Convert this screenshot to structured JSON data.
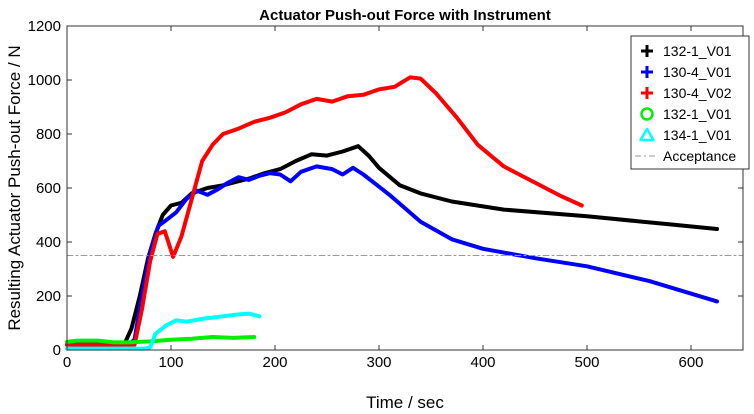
{
  "chart_data": {
    "type": "line",
    "title": "Actuator Push-out Force with Instrument",
    "xlabel": "Time / sec",
    "ylabel": "Resulting Actuator Push-out Force / N",
    "xlim": [
      0,
      650
    ],
    "ylim": [
      0,
      1200
    ],
    "xticks": [
      0,
      100,
      200,
      300,
      400,
      500,
      600
    ],
    "yticks": [
      0,
      200,
      400,
      600,
      800,
      1000,
      1200
    ],
    "grid": false,
    "legend_position": "top-right",
    "series": [
      {
        "name": "132-1_V01",
        "color": "#000000",
        "marker": "plus",
        "points": [
          [
            0,
            20
          ],
          [
            55,
            20
          ],
          [
            62,
            80
          ],
          [
            70,
            200
          ],
          [
            78,
            340
          ],
          [
            85,
            430
          ],
          [
            92,
            500
          ],
          [
            100,
            535
          ],
          [
            110,
            545
          ],
          [
            120,
            580
          ],
          [
            135,
            600
          ],
          [
            150,
            610
          ],
          [
            160,
            620
          ],
          [
            175,
            635
          ],
          [
            190,
            655
          ],
          [
            205,
            670
          ],
          [
            220,
            700
          ],
          [
            235,
            725
          ],
          [
            250,
            720
          ],
          [
            265,
            735
          ],
          [
            280,
            755
          ],
          [
            290,
            720
          ],
          [
            300,
            675
          ],
          [
            320,
            610
          ],
          [
            340,
            580
          ],
          [
            370,
            550
          ],
          [
            420,
            520
          ],
          [
            500,
            495
          ],
          [
            580,
            465
          ],
          [
            625,
            448
          ]
        ]
      },
      {
        "name": "130-4_V01",
        "color": "#0000ff",
        "marker": "plus",
        "points": [
          [
            0,
            20
          ],
          [
            60,
            20
          ],
          [
            65,
            40
          ],
          [
            72,
            200
          ],
          [
            80,
            360
          ],
          [
            88,
            460
          ],
          [
            95,
            480
          ],
          [
            105,
            510
          ],
          [
            115,
            560
          ],
          [
            125,
            590
          ],
          [
            135,
            575
          ],
          [
            145,
            595
          ],
          [
            155,
            620
          ],
          [
            165,
            640
          ],
          [
            175,
            630
          ],
          [
            185,
            645
          ],
          [
            195,
            655
          ],
          [
            205,
            650
          ],
          [
            215,
            625
          ],
          [
            225,
            660
          ],
          [
            240,
            680
          ],
          [
            255,
            670
          ],
          [
            265,
            650
          ],
          [
            275,
            675
          ],
          [
            285,
            650
          ],
          [
            310,
            575
          ],
          [
            340,
            475
          ],
          [
            370,
            410
          ],
          [
            400,
            375
          ],
          [
            450,
            340
          ],
          [
            500,
            310
          ],
          [
            560,
            255
          ],
          [
            625,
            180
          ]
        ]
      },
      {
        "name": "130-4_V02",
        "color": "#ff0000",
        "marker": "plus",
        "points": [
          [
            0,
            20
          ],
          [
            65,
            20
          ],
          [
            72,
            150
          ],
          [
            80,
            330
          ],
          [
            87,
            430
          ],
          [
            94,
            440
          ],
          [
            102,
            345
          ],
          [
            110,
            420
          ],
          [
            120,
            560
          ],
          [
            130,
            700
          ],
          [
            140,
            760
          ],
          [
            150,
            800
          ],
          [
            165,
            820
          ],
          [
            180,
            845
          ],
          [
            195,
            860
          ],
          [
            210,
            880
          ],
          [
            225,
            910
          ],
          [
            240,
            930
          ],
          [
            255,
            920
          ],
          [
            270,
            940
          ],
          [
            285,
            945
          ],
          [
            300,
            965
          ],
          [
            315,
            975
          ],
          [
            330,
            1010
          ],
          [
            340,
            1005
          ],
          [
            355,
            950
          ],
          [
            375,
            860
          ],
          [
            395,
            760
          ],
          [
            420,
            680
          ],
          [
            450,
            620
          ],
          [
            475,
            570
          ],
          [
            495,
            535
          ]
        ]
      },
      {
        "name": "132-1_V01",
        "color": "#00ee00",
        "marker": "circle",
        "points": [
          [
            0,
            30
          ],
          [
            10,
            35
          ],
          [
            30,
            35
          ],
          [
            45,
            28
          ],
          [
            60,
            28
          ],
          [
            80,
            32
          ],
          [
            100,
            38
          ],
          [
            120,
            42
          ],
          [
            140,
            48
          ],
          [
            160,
            45
          ],
          [
            180,
            48
          ]
        ]
      },
      {
        "name": "134-1_V01",
        "color": "#00ffff",
        "marker": "triangle",
        "points": [
          [
            0,
            5
          ],
          [
            20,
            5
          ],
          [
            50,
            5
          ],
          [
            75,
            5
          ],
          [
            80,
            10
          ],
          [
            85,
            60
          ],
          [
            95,
            90
          ],
          [
            105,
            110
          ],
          [
            115,
            105
          ],
          [
            130,
            115
          ],
          [
            150,
            125
          ],
          [
            165,
            132
          ],
          [
            175,
            135
          ],
          [
            185,
            125
          ]
        ]
      },
      {
        "name": "Acceptance",
        "color": "#999999",
        "style": "dash-dot",
        "points": [
          [
            0,
            350
          ],
          [
            650,
            350
          ]
        ]
      }
    ]
  }
}
